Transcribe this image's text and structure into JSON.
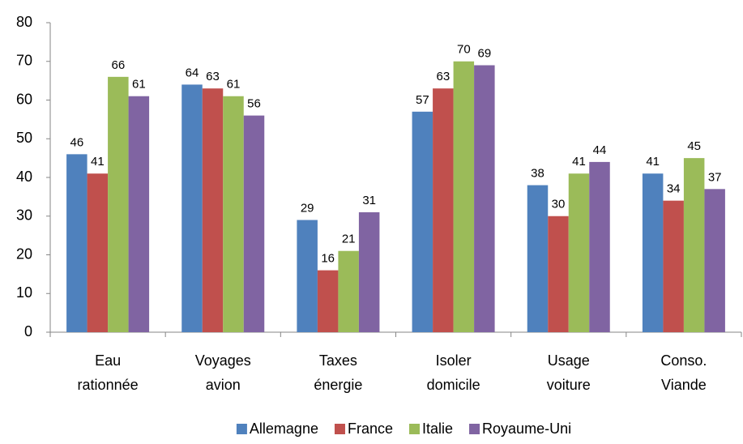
{
  "chart_data": {
    "type": "bar",
    "categories": [
      "Eau rationnée",
      "Voyages avion",
      "Taxes énergie",
      "Isoler domicile",
      "Usage voiture",
      "Conso. Viande"
    ],
    "series": [
      {
        "name": "Allemagne",
        "color": "#4f81bd",
        "values": [
          46,
          64,
          29,
          57,
          38,
          41
        ]
      },
      {
        "name": "France",
        "color": "#c0504d",
        "values": [
          41,
          63,
          16,
          63,
          30,
          34
        ]
      },
      {
        "name": "Italie",
        "color": "#9bbb59",
        "values": [
          66,
          61,
          21,
          70,
          41,
          45
        ]
      },
      {
        "name": "Royaume-Uni",
        "color": "#8064a2",
        "values": [
          61,
          56,
          31,
          69,
          44,
          37
        ]
      }
    ],
    "ylim": [
      0,
      80
    ],
    "yticks": [
      0,
      10,
      20,
      30,
      40,
      50,
      60,
      70,
      80
    ],
    "grid": false,
    "legend": "bottom"
  }
}
